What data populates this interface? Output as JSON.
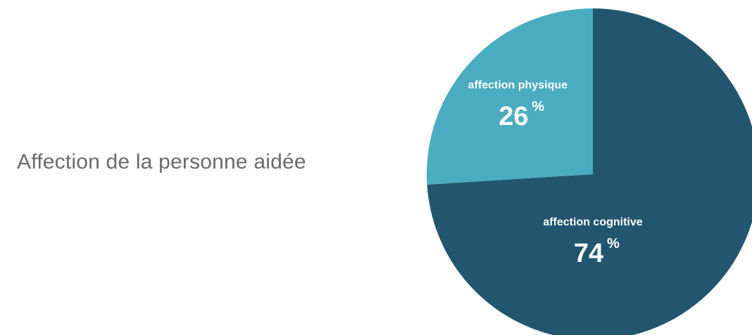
{
  "title": "Affection de la personne aidée",
  "chart_data": {
    "type": "pie",
    "title": "Affection de la personne aidée",
    "unit": "%",
    "slices": [
      {
        "label": "affection cognitive",
        "value": 74,
        "color": "#22566f"
      },
      {
        "label": "affection physique",
        "value": 26,
        "color": "#4aacc0"
      }
    ]
  }
}
